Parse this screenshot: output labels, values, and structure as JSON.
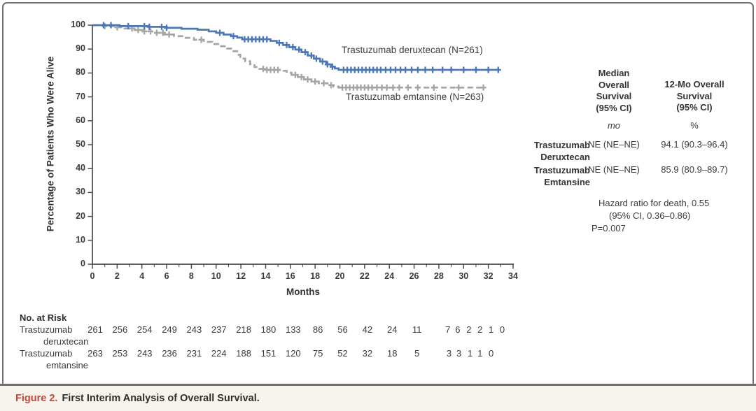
{
  "figure": {
    "caption_label": "Figure 2.",
    "caption_text": "First Interim Analysis of Overall Survival."
  },
  "chart_data": {
    "type": "line",
    "subtype": "kaplan-meier-step",
    "title": "",
    "xlabel": "Months",
    "ylabel": "Percentage of Patients Who Were Alive",
    "xlim": [
      0,
      34
    ],
    "ylim": [
      0,
      100
    ],
    "xticks": [
      0,
      2,
      4,
      6,
      8,
      10,
      12,
      14,
      16,
      18,
      20,
      22,
      24,
      26,
      28,
      30,
      32,
      34
    ],
    "yticks": [
      0,
      10,
      20,
      30,
      40,
      50,
      60,
      70,
      80,
      90,
      100
    ],
    "grid": false,
    "legend_position": "inline-labels",
    "colors": {
      "deruxtecan": "#4d76b5",
      "emtansine": "#a5a5a6",
      "axis": "#4a4a4a"
    },
    "series": [
      {
        "name": "Trastuzumab deruxtecan",
        "label": "Trastuzumab deruxtecan (N=261)",
        "n": 261,
        "color": "#4d76b5",
        "dash": "solid",
        "points": [
          [
            0,
            100
          ],
          [
            2.2,
            99.6
          ],
          [
            4.6,
            99.3
          ],
          [
            6.0,
            98.9
          ],
          [
            7.2,
            98.5
          ],
          [
            8.5,
            98.1
          ],
          [
            9.4,
            97.4
          ],
          [
            10.0,
            96.8
          ],
          [
            10.6,
            96.1
          ],
          [
            11.2,
            95.4
          ],
          [
            11.7,
            94.8
          ],
          [
            12.1,
            94.1
          ],
          [
            14.4,
            93.4
          ],
          [
            14.9,
            92.6
          ],
          [
            15.4,
            91.7
          ],
          [
            15.9,
            90.8
          ],
          [
            16.4,
            89.8
          ],
          [
            16.9,
            88.7
          ],
          [
            17.4,
            87.3
          ],
          [
            17.9,
            86.0
          ],
          [
            18.4,
            84.8
          ],
          [
            18.9,
            83.6
          ],
          [
            19.3,
            82.6
          ],
          [
            19.6,
            81.9
          ],
          [
            19.9,
            81.3
          ],
          [
            32.8,
            81.3
          ]
        ],
        "censor_marks": [
          0.9,
          1.5,
          2.9,
          4.2,
          4.6,
          5.6,
          6.0,
          10.3,
          11.4,
          12.3,
          12.6,
          12.9,
          13.2,
          13.5,
          13.8,
          14.1,
          15.1,
          15.7,
          16.2,
          16.7,
          17.2,
          17.7,
          18.1,
          18.6,
          19.0,
          19.4,
          20.3,
          20.6,
          20.9,
          21.2,
          21.5,
          21.8,
          22.1,
          22.4,
          22.7,
          23.0,
          23.3,
          23.7,
          24.1,
          24.5,
          24.9,
          25.3,
          25.8,
          26.3,
          26.9,
          27.5,
          28.3,
          29.0,
          30.0,
          31.0,
          32.0,
          32.8
        ]
      },
      {
        "name": "Trastuzumab emtansine",
        "label": "Trastuzumab emtansine (N=263)",
        "n": 263,
        "color": "#a5a5a6",
        "dash": "dashed",
        "points": [
          [
            0,
            100
          ],
          [
            0.9,
            99.6
          ],
          [
            1.8,
            99.1
          ],
          [
            2.6,
            98.6
          ],
          [
            3.4,
            98.0
          ],
          [
            4.2,
            97.4
          ],
          [
            5.0,
            96.8
          ],
          [
            5.8,
            96.1
          ],
          [
            6.6,
            95.4
          ],
          [
            7.4,
            94.7
          ],
          [
            8.2,
            93.9
          ],
          [
            9.0,
            93.0
          ],
          [
            9.7,
            92.1
          ],
          [
            10.3,
            91.2
          ],
          [
            10.9,
            90.2
          ],
          [
            11.4,
            89.1
          ],
          [
            11.7,
            87.6
          ],
          [
            11.95,
            86.0
          ],
          [
            12.35,
            84.9
          ],
          [
            12.75,
            83.7
          ],
          [
            13.1,
            82.5
          ],
          [
            13.5,
            81.7
          ],
          [
            14.0,
            81.3
          ],
          [
            15.3,
            80.9
          ],
          [
            15.7,
            80.1
          ],
          [
            16.1,
            79.2
          ],
          [
            16.6,
            78.3
          ],
          [
            17.1,
            77.3
          ],
          [
            17.7,
            76.4
          ],
          [
            18.3,
            75.7
          ],
          [
            19.0,
            74.9
          ],
          [
            19.5,
            74.3
          ],
          [
            19.9,
            73.9
          ],
          [
            31.6,
            73.9
          ]
        ],
        "censor_marks": [
          1.0,
          2.0,
          3.2,
          3.7,
          4.2,
          4.7,
          5.2,
          5.7,
          6.2,
          8.8,
          13.8,
          14.1,
          14.4,
          14.7,
          15.0,
          16.4,
          16.9,
          17.4,
          18.0,
          18.7,
          19.3,
          20.2,
          20.5,
          20.8,
          21.1,
          21.4,
          21.7,
          22.0,
          22.3,
          22.6,
          23.0,
          23.4,
          23.8,
          24.3,
          24.8,
          25.5,
          26.3,
          27.6,
          29.6,
          31.6
        ]
      }
    ]
  },
  "stats_table": {
    "col1_header": "Median\nOverall\nSurvival\n(95% CI)",
    "col2_header": "12-Mo Overall\nSurvival\n(95% CI)",
    "col1_unit": "mo",
    "col2_unit": "%",
    "rows": [
      {
        "label": "Trastuzumab\nDeruxtecan",
        "median_os": "NE (NE–NE)",
        "os_12mo": "94.1 (90.3–96.4)"
      },
      {
        "label": "Trastuzumab\nEmtansine",
        "median_os": "NE (NE–NE)",
        "os_12mo": "85.9 (80.9–89.7)"
      }
    ],
    "hazard_line1": "Hazard ratio for death, 0.55",
    "hazard_line2": "(95% CI, 0.36–0.86)",
    "hazard_line3": "P=0.007"
  },
  "risk_table": {
    "title": "No. at Risk",
    "rows": [
      {
        "label_line1": "Trastuzumab",
        "label_line2": "deruxtecan",
        "values": [
          261,
          256,
          254,
          249,
          243,
          237,
          218,
          180,
          133,
          86,
          56,
          42,
          24,
          11,
          7,
          6,
          2,
          2,
          1,
          0
        ],
        "months": [
          0,
          2,
          4,
          6,
          8,
          10,
          12,
          14,
          16,
          18,
          20,
          22,
          24,
          26,
          28.5,
          29.3,
          30.2,
          31.1,
          32.0,
          32.9
        ]
      },
      {
        "label_line1": "Trastuzumab",
        "label_line2": "emtansine",
        "values": [
          263,
          253,
          243,
          236,
          231,
          224,
          188,
          151,
          120,
          75,
          52,
          32,
          18,
          5,
          3,
          3,
          1,
          1,
          0
        ],
        "months": [
          0,
          2,
          4,
          6,
          8,
          10,
          12,
          14,
          16,
          18,
          20,
          22,
          24,
          26,
          28.6,
          29.4,
          30.3,
          31.1,
          32.0
        ]
      }
    ]
  }
}
